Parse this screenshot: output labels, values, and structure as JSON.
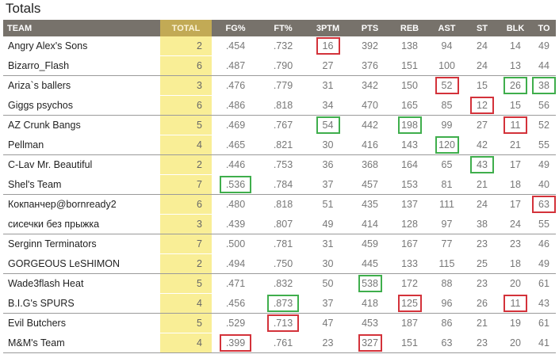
{
  "title": "Totals",
  "columns": [
    "TEAM",
    "TOTAL",
    "FG%",
    "FT%",
    "3PTM",
    "PTS",
    "REB",
    "AST",
    "ST",
    "BLK",
    "TO"
  ],
  "colors": {
    "header_bg": "#77726b",
    "total_col_bg": "#f9ee96",
    "total_header_bg": "#c2aa55",
    "highlight_best": "#3fae4c",
    "highlight_worst": "#d3323a"
  },
  "rows": [
    {
      "team": "Angry Alex's Sons",
      "total": "2",
      "fg": ".454",
      "ft": ".732",
      "tpm": "16",
      "pts": "392",
      "reb": "138",
      "ast": "94",
      "st": "24",
      "blk": "14",
      "to": "49",
      "red": [
        "tpm"
      ],
      "green": []
    },
    {
      "team": "Bizarro_Flash",
      "total": "6",
      "fg": ".487",
      "ft": ".790",
      "tpm": "27",
      "pts": "376",
      "reb": "151",
      "ast": "100",
      "st": "24",
      "blk": "13",
      "to": "44",
      "red": [],
      "green": []
    },
    {
      "team": "Ariza`s ballers",
      "total": "3",
      "fg": ".476",
      "ft": ".779",
      "tpm": "31",
      "pts": "342",
      "reb": "150",
      "ast": "52",
      "st": "15",
      "blk": "26",
      "to": "38",
      "red": [
        "ast"
      ],
      "green": [
        "blk",
        "to"
      ]
    },
    {
      "team": "Giggs psychos",
      "total": "6",
      "fg": ".486",
      "ft": ".818",
      "tpm": "34",
      "pts": "470",
      "reb": "165",
      "ast": "85",
      "st": "12",
      "blk": "15",
      "to": "56",
      "red": [
        "st"
      ],
      "green": []
    },
    {
      "team": "AZ Crunk Bangs",
      "total": "5",
      "fg": ".469",
      "ft": ".767",
      "tpm": "54",
      "pts": "442",
      "reb": "198",
      "ast": "99",
      "st": "27",
      "blk": "11",
      "to": "52",
      "red": [
        "blk"
      ],
      "green": [
        "tpm",
        "reb"
      ]
    },
    {
      "team": "Pellman",
      "total": "4",
      "fg": ".465",
      "ft": ".821",
      "tpm": "30",
      "pts": "416",
      "reb": "143",
      "ast": "120",
      "st": "42",
      "blk": "21",
      "to": "55",
      "red": [],
      "green": [
        "ast"
      ]
    },
    {
      "team": "C-Lav Mr. Beautiful",
      "total": "2",
      "fg": ".446",
      "ft": ".753",
      "tpm": "36",
      "pts": "368",
      "reb": "164",
      "ast": "65",
      "st": "43",
      "blk": "17",
      "to": "49",
      "red": [],
      "green": [
        "st"
      ]
    },
    {
      "team": "Shel's Team",
      "total": "7",
      "fg": ".536",
      "ft": ".784",
      "tpm": "37",
      "pts": "457",
      "reb": "153",
      "ast": "81",
      "st": "21",
      "blk": "18",
      "to": "40",
      "red": [],
      "green": [
        "fg"
      ]
    },
    {
      "team": "Кокпанчер@bornready2",
      "total": "6",
      "fg": ".480",
      "ft": ".818",
      "tpm": "51",
      "pts": "435",
      "reb": "137",
      "ast": "111",
      "st": "24",
      "blk": "17",
      "to": "63",
      "red": [
        "to"
      ],
      "green": []
    },
    {
      "team": "сисечки без прыжка",
      "total": "3",
      "fg": ".439",
      "ft": ".807",
      "tpm": "49",
      "pts": "414",
      "reb": "128",
      "ast": "97",
      "st": "38",
      "blk": "24",
      "to": "55",
      "red": [],
      "green": []
    },
    {
      "team": "Serginn Terminators",
      "total": "7",
      "fg": ".500",
      "ft": ".781",
      "tpm": "31",
      "pts": "459",
      "reb": "167",
      "ast": "77",
      "st": "23",
      "blk": "23",
      "to": "46",
      "red": [],
      "green": []
    },
    {
      "team": "GORGEOUS LeSHIMON",
      "total": "2",
      "fg": ".494",
      "ft": ".750",
      "tpm": "30",
      "pts": "445",
      "reb": "133",
      "ast": "115",
      "st": "25",
      "blk": "18",
      "to": "49",
      "red": [],
      "green": []
    },
    {
      "team": "Wade3flash Heat",
      "total": "5",
      "fg": ".471",
      "ft": ".832",
      "tpm": "50",
      "pts": "538",
      "reb": "172",
      "ast": "88",
      "st": "23",
      "blk": "20",
      "to": "61",
      "red": [],
      "green": [
        "pts"
      ]
    },
    {
      "team": "B.I.G's SPURS",
      "total": "4",
      "fg": ".456",
      "ft": ".873",
      "tpm": "37",
      "pts": "418",
      "reb": "125",
      "ast": "96",
      "st": "26",
      "blk": "11",
      "to": "43",
      "red": [
        "reb",
        "blk"
      ],
      "green": [
        "ft"
      ]
    },
    {
      "team": "Evil Butchers",
      "total": "5",
      "fg": ".529",
      "ft": ".713",
      "tpm": "47",
      "pts": "453",
      "reb": "187",
      "ast": "86",
      "st": "21",
      "blk": "19",
      "to": "61",
      "red": [
        "ft"
      ],
      "green": []
    },
    {
      "team": "M&M's Team",
      "total": "4",
      "fg": ".399",
      "ft": ".761",
      "tpm": "23",
      "pts": "327",
      "reb": "151",
      "ast": "63",
      "st": "23",
      "blk": "20",
      "to": "41",
      "red": [
        "fg",
        "pts"
      ],
      "green": []
    }
  ]
}
